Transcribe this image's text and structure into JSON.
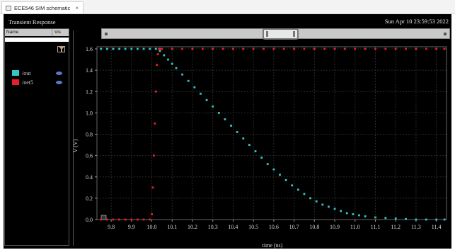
{
  "tab": {
    "label": "ECE546 SIM schematic",
    "close": "×"
  },
  "panel": {
    "title": "Transient Response",
    "timestamp": "Sun Apr 10 23:59:53 2022"
  },
  "browser": {
    "col_name": "Name",
    "col_vis": "Vis",
    "signals": [
      {
        "name": "/out",
        "color": "#33c6c6"
      },
      {
        "name": "/net5",
        "color": "#e6202a"
      }
    ]
  },
  "chart_data": {
    "type": "scatter",
    "xlabel": "time (ns)",
    "ylabel": "V (V)",
    "xlim": [
      9.73,
      11.45
    ],
    "ylim": [
      0.0,
      1.62
    ],
    "xticks": [
      "9.8",
      "9.9",
      "10.0",
      "10.1",
      "10.2",
      "10.3",
      "10.4",
      "10.5",
      "10.6",
      "10.7",
      "10.8",
      "10.9",
      "11.0",
      "11.1",
      "11.2",
      "11.3",
      "11.4"
    ],
    "yticks": [
      "0.0",
      "0.2",
      "0.4",
      "0.6",
      "0.8",
      "1.0",
      "1.2",
      "1.4",
      "1.6"
    ],
    "grid": true,
    "series": [
      {
        "name": "/net5",
        "color": "#e6202a",
        "x": [
          9.75,
          9.78,
          9.81,
          9.84,
          9.87,
          9.9,
          9.93,
          9.96,
          9.99,
          10.0,
          10.005,
          10.01,
          10.015,
          10.02,
          10.025,
          10.03,
          10.035,
          10.04,
          10.05,
          10.1,
          10.15,
          10.2,
          10.25,
          10.3,
          10.35,
          10.4,
          10.45,
          10.5,
          10.55,
          10.6,
          10.65,
          10.7,
          10.75,
          10.8,
          10.85,
          10.9,
          10.95,
          11.0,
          11.05,
          11.1,
          11.15,
          11.2,
          11.25,
          11.3,
          11.35,
          11.4,
          11.44
        ],
        "y": [
          0.0,
          0.0,
          0.0,
          0.0,
          0.0,
          0.0,
          0.0,
          0.0,
          0.0,
          0.05,
          0.3,
          0.6,
          0.9,
          1.2,
          1.45,
          1.55,
          1.6,
          1.6,
          1.6,
          1.6,
          1.6,
          1.6,
          1.6,
          1.6,
          1.6,
          1.6,
          1.6,
          1.6,
          1.6,
          1.6,
          1.6,
          1.6,
          1.6,
          1.6,
          1.6,
          1.6,
          1.6,
          1.6,
          1.6,
          1.6,
          1.6,
          1.6,
          1.6,
          1.6,
          1.6,
          1.6,
          1.6
        ]
      },
      {
        "name": "/out",
        "color": "#33c6c6",
        "x": [
          9.75,
          9.78,
          9.81,
          9.84,
          9.87,
          9.9,
          9.93,
          9.96,
          9.99,
          10.02,
          10.04,
          10.06,
          10.08,
          10.1,
          10.12,
          10.15,
          10.18,
          10.21,
          10.24,
          10.27,
          10.3,
          10.33,
          10.36,
          10.39,
          10.42,
          10.45,
          10.48,
          10.51,
          10.54,
          10.57,
          10.6,
          10.63,
          10.66,
          10.69,
          10.72,
          10.75,
          10.78,
          10.81,
          10.84,
          10.87,
          10.9,
          10.93,
          10.96,
          10.99,
          11.02,
          11.05,
          11.1,
          11.15,
          11.2,
          11.25,
          11.3,
          11.35,
          11.4,
          11.44
        ],
        "y": [
          1.6,
          1.6,
          1.6,
          1.6,
          1.6,
          1.6,
          1.6,
          1.6,
          1.6,
          1.6,
          1.58,
          1.54,
          1.5,
          1.46,
          1.42,
          1.36,
          1.3,
          1.24,
          1.18,
          1.12,
          1.06,
          1.0,
          0.94,
          0.88,
          0.82,
          0.76,
          0.7,
          0.64,
          0.58,
          0.52,
          0.47,
          0.42,
          0.37,
          0.32,
          0.28,
          0.24,
          0.2,
          0.17,
          0.14,
          0.12,
          0.1,
          0.08,
          0.06,
          0.05,
          0.04,
          0.03,
          0.02,
          0.015,
          0.01,
          0.005,
          0.0,
          0.0,
          0.0,
          0.0
        ]
      }
    ]
  }
}
